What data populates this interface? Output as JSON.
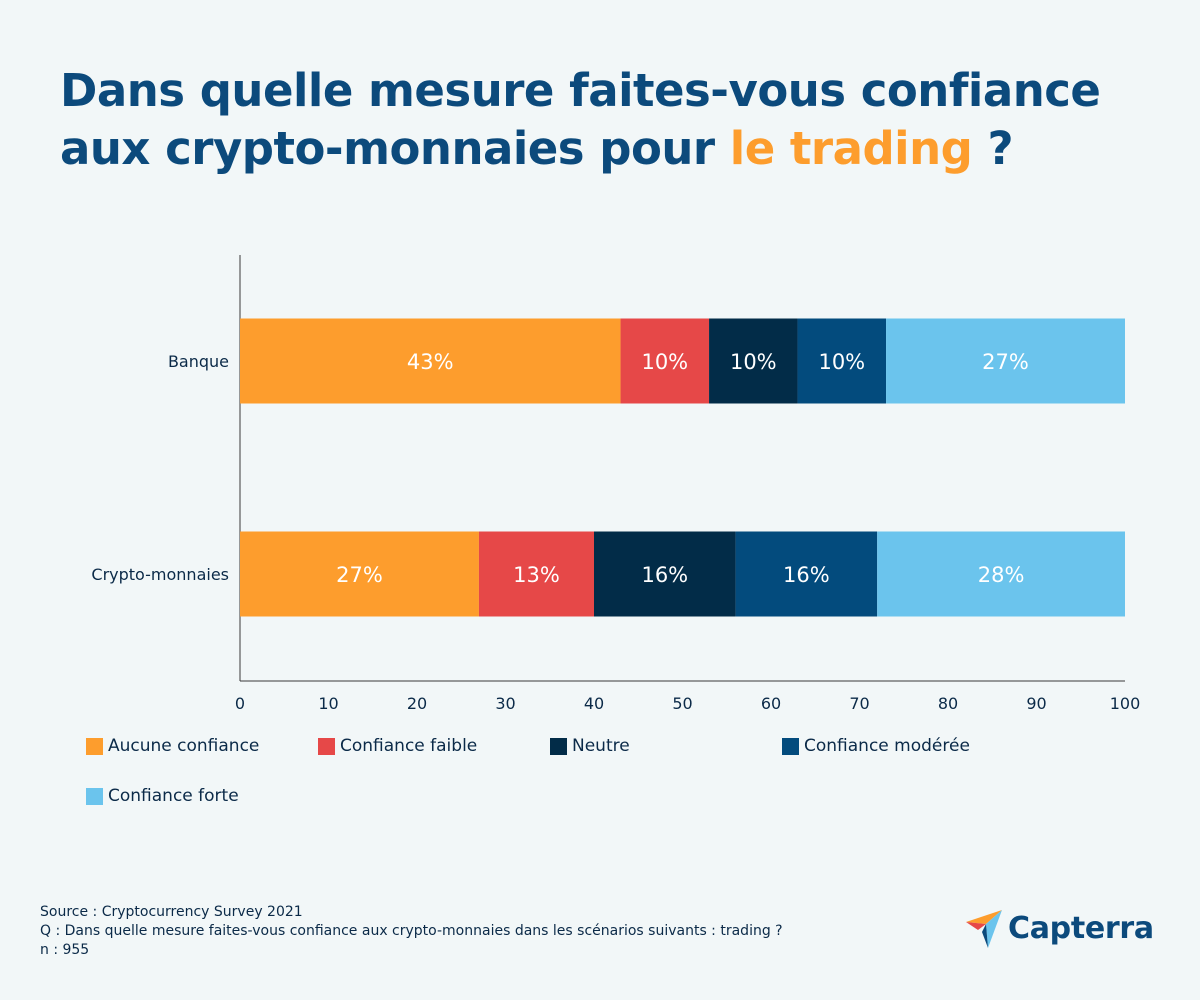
{
  "title": {
    "line1": "Dans quelle mesure faites-vous confiance",
    "line2_prefix": "aux crypto-monnaies pour ",
    "highlight": "le trading",
    "suffix": " ?"
  },
  "chart_data": {
    "type": "bar",
    "orientation": "horizontal",
    "stacked": true,
    "categories": [
      "Banque",
      "Crypto-monnaies"
    ],
    "series": [
      {
        "name": "Aucune confiance",
        "color": "#fd9d2d",
        "values": [
          43,
          27
        ],
        "labels": [
          "43%",
          "27%"
        ],
        "label_color": "#ffffff"
      },
      {
        "name": "Confiance faible",
        "color": "#e64848",
        "values": [
          10,
          13
        ],
        "labels": [
          "10%",
          "13%"
        ],
        "label_color": "#ffffff"
      },
      {
        "name": "Neutre",
        "color": "#022c48",
        "values": [
          10,
          16
        ],
        "labels": [
          "10%",
          "16%"
        ],
        "label_color": "#ffffff"
      },
      {
        "name": "Confiance modérée",
        "color": "#034b7d",
        "values": [
          10,
          16
        ],
        "labels": [
          "10%",
          "16%"
        ],
        "label_color": "#ffffff"
      },
      {
        "name": "Confiance forte",
        "color": "#6bc4ed",
        "values": [
          27,
          28
        ],
        "labels": [
          "27%",
          "28%"
        ],
        "label_color": "#ffffff"
      }
    ],
    "xlim": [
      0,
      100
    ],
    "xticks": [
      0,
      10,
      20,
      30,
      40,
      50,
      60,
      70,
      80,
      90,
      100
    ],
    "legend_position": "bottom",
    "grid": false
  },
  "source": {
    "line1": "Source : Cryptocurrency Survey 2021",
    "line2": "Q : Dans quelle mesure faites-vous confiance aux crypto-monnaies dans les scénarios suivants : trading ?",
    "line3": "n : 955"
  },
  "logo": {
    "text": "Capterra",
    "icon": "capterra-arrow-icon"
  }
}
